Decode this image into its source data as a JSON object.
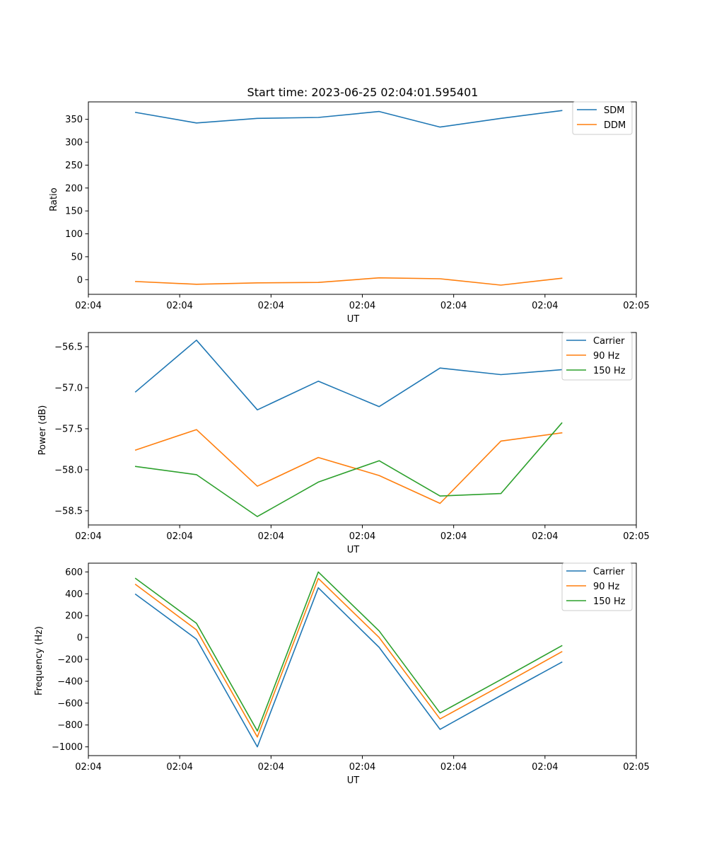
{
  "figure": {
    "title": "Start time: 2023-06-25 02:04:01.595401"
  },
  "colors": {
    "blue": "#1f77b4",
    "orange": "#ff7f0e",
    "green": "#2ca02c"
  },
  "chart_data": [
    {
      "type": "line",
      "title": "Start time: 2023-06-25 02:04:01.595401",
      "xlabel": "UT",
      "ylabel": "Ratio",
      "x": [
        1,
        2,
        3,
        4,
        5,
        6,
        7,
        8
      ],
      "xlim": [
        0.224,
        9.224
      ],
      "xticks": [
        0.224,
        1.724,
        3.224,
        4.724,
        6.224,
        7.724,
        9.224
      ],
      "xtick_labels": [
        "02:04",
        "02:04",
        "02:04",
        "02:04",
        "02:04",
        "02:04",
        "02:05"
      ],
      "ylim": [
        -32,
        388
      ],
      "yticks": [
        0,
        50,
        100,
        150,
        200,
        250,
        300,
        350
      ],
      "ytick_labels": [
        "0",
        "50",
        "100",
        "150",
        "200",
        "250",
        "300",
        "350"
      ],
      "legend_position": "top-right",
      "series": [
        {
          "name": "SDM",
          "color": "#1f77b4",
          "values": [
            365,
            342,
            352,
            354,
            367,
            333,
            352,
            369
          ]
        },
        {
          "name": "DDM",
          "color": "#ff7f0e",
          "values": [
            -4,
            -10,
            -7,
            -6,
            4,
            2,
            -12,
            3
          ]
        }
      ]
    },
    {
      "type": "line",
      "xlabel": "UT",
      "ylabel": "Power (dB)",
      "x": [
        1,
        2,
        3,
        4,
        5,
        6,
        7,
        8
      ],
      "xlim": [
        0.224,
        9.224
      ],
      "xticks": [
        0.224,
        1.724,
        3.224,
        4.724,
        6.224,
        7.724,
        9.224
      ],
      "xtick_labels": [
        "02:04",
        "02:04",
        "02:04",
        "02:04",
        "02:04",
        "02:04",
        "02:05"
      ],
      "ylim": [
        -58.673,
        -56.327
      ],
      "yticks": [
        -58.5,
        -58.0,
        -57.5,
        -57.0,
        -56.5
      ],
      "ytick_labels": [
        "−58.5",
        "−58.0",
        "−57.5",
        "−57.0",
        "−56.5"
      ],
      "legend_position": "top-right",
      "series": [
        {
          "name": "Carrier",
          "color": "#1f77b4",
          "values": [
            -57.05,
            -56.42,
            -57.27,
            -56.92,
            -57.23,
            -56.76,
            -56.84,
            -56.78
          ]
        },
        {
          "name": "90 Hz",
          "color": "#ff7f0e",
          "values": [
            -57.76,
            -57.51,
            -58.2,
            -57.85,
            -58.07,
            -58.41,
            -57.65,
            -57.55
          ]
        },
        {
          "name": "150 Hz",
          "color": "#2ca02c",
          "values": [
            -57.96,
            -58.06,
            -58.57,
            -58.15,
            -57.89,
            -58.32,
            -58.29,
            -57.43
          ]
        }
      ]
    },
    {
      "type": "line",
      "xlabel": "UT",
      "ylabel": "Frequency (Hz)",
      "x": [
        1,
        2,
        3,
        4,
        5,
        6,
        7,
        8
      ],
      "xlim": [
        0.224,
        9.224
      ],
      "xticks": [
        0.224,
        1.724,
        3.224,
        4.724,
        6.224,
        7.724,
        9.224
      ],
      "xtick_labels": [
        "02:04",
        "02:04",
        "02:04",
        "02:04",
        "02:04",
        "02:04",
        "02:05"
      ],
      "ylim": [
        -1080,
        680
      ],
      "yticks": [
        -1000,
        -800,
        -600,
        -400,
        -200,
        0,
        200,
        400,
        600
      ],
      "ytick_labels": [
        "−1000",
        "−800",
        "−600",
        "−400",
        "−200",
        "0",
        "200",
        "400",
        "600"
      ],
      "legend_position": "top-right",
      "series": [
        {
          "name": "Carrier",
          "color": "#1f77b4",
          "values": [
            395,
            -15,
            -1000,
            455,
            -90,
            -840,
            -530,
            -225
          ]
        },
        {
          "name": "90 Hz",
          "color": "#ff7f0e",
          "values": [
            485,
            70,
            -910,
            540,
            0,
            -745,
            -440,
            -130
          ]
        },
        {
          "name": "150 Hz",
          "color": "#2ca02c",
          "values": [
            540,
            130,
            -855,
            600,
            60,
            -690,
            -385,
            -75
          ]
        }
      ]
    }
  ]
}
